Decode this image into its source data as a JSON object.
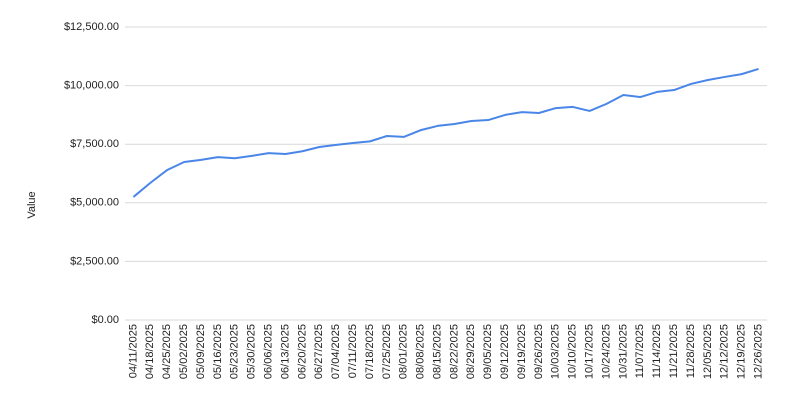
{
  "chart_data": {
    "type": "line",
    "y_label": "Value",
    "categories": [
      "04/11/2025",
      "04/18/2025",
      "04/25/2025",
      "05/02/2025",
      "05/09/2025",
      "05/16/2025",
      "05/23/2025",
      "05/30/2025",
      "06/06/2025",
      "06/13/2025",
      "06/20/2025",
      "06/27/2025",
      "07/04/2025",
      "07/11/2025",
      "07/18/2025",
      "07/25/2025",
      "08/01/2025",
      "08/08/2025",
      "08/15/2025",
      "08/22/2025",
      "08/29/2025",
      "09/05/2025",
      "09/12/2025",
      "09/19/2025",
      "09/26/2025",
      "10/03/2025",
      "10/10/2025",
      "10/17/2025",
      "10/24/2025",
      "10/31/2025",
      "11/07/2025",
      "11/14/2025",
      "11/21/2025",
      "11/28/2025",
      "12/05/2025",
      "12/12/2025",
      "12/19/2025",
      "12/26/2025"
    ],
    "values": [
      5250,
      5850,
      6400,
      6740,
      6830,
      6950,
      6900,
      7000,
      7120,
      7080,
      7200,
      7380,
      7470,
      7550,
      7620,
      7850,
      7810,
      8100,
      8280,
      8360,
      8490,
      8530,
      8750,
      8870,
      8830,
      9040,
      9090,
      8920,
      9220,
      9600,
      9510,
      9730,
      9810,
      10070,
      10240,
      10370,
      10490,
      10710
    ],
    "color": "#4a86e8",
    "ylim": [
      0,
      12500
    ],
    "yticks": [
      {
        "value": 0,
        "label": "$0.00"
      },
      {
        "value": 2500,
        "label": "$2,500.00"
      },
      {
        "value": 5000,
        "label": "$5,000.00"
      },
      {
        "value": 7500,
        "label": "$7,500.00"
      },
      {
        "value": 10000,
        "label": "$10,000.00"
      },
      {
        "value": 12500,
        "label": "$12,500.00"
      }
    ],
    "grid": true
  }
}
